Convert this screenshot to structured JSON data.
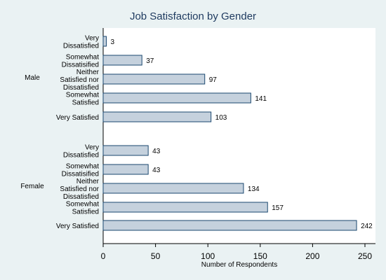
{
  "chart_data": {
    "type": "bar",
    "orientation": "horizontal",
    "title": "Job Satisfaction by Gender",
    "xlabel": "Number of Respondents",
    "xlim": [
      0,
      260
    ],
    "xticks": [
      0,
      50,
      100,
      150,
      200,
      250
    ],
    "grid": false,
    "colors": {
      "bar_fill": "#c5d1dd",
      "bar_stroke": "#1a476f",
      "title": "#1e3a5f",
      "background": "#eaf2f3",
      "plot_bg": "#ffffff"
    },
    "groups": [
      {
        "name": "Male",
        "bars": [
          {
            "label": [
              "Very",
              "Dissatisfied"
            ],
            "value": 3
          },
          {
            "label": [
              "Somewhat",
              "Dissatisified"
            ],
            "value": 37
          },
          {
            "label": [
              "Neither",
              "Satisfied nor",
              "Dissatisfied"
            ],
            "value": 97
          },
          {
            "label": [
              "Somewhat",
              "Satisfied"
            ],
            "value": 141
          },
          {
            "label": [
              "Very Satisfied"
            ],
            "value": 103
          }
        ]
      },
      {
        "name": "Female",
        "bars": [
          {
            "label": [
              "Very",
              "Dissatisfied"
            ],
            "value": 43
          },
          {
            "label": [
              "Somewhat",
              "Dissatisified"
            ],
            "value": 43
          },
          {
            "label": [
              "Neither",
              "Satisfied nor",
              "Dissatisfied"
            ],
            "value": 134
          },
          {
            "label": [
              "Somewhat",
              "Satisfied"
            ],
            "value": 157
          },
          {
            "label": [
              "Very Satisfied"
            ],
            "value": 242
          }
        ]
      }
    ]
  }
}
